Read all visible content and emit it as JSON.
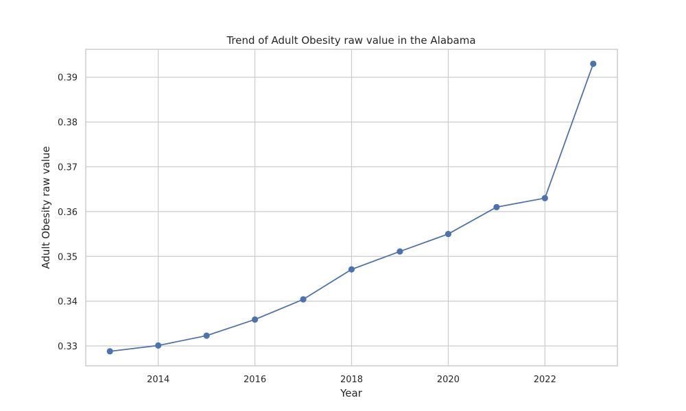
{
  "chart_data": {
    "type": "line",
    "title": "Trend of Adult Obesity raw value in the Alabama",
    "xlabel": "Year",
    "ylabel": "Adult Obesity raw value",
    "x": [
      2013,
      2014,
      2015,
      2016,
      2017,
      2018,
      2019,
      2020,
      2021,
      2022,
      2023
    ],
    "series": [
      {
        "values": [
          0.3288,
          0.3301,
          0.3323,
          0.3359,
          0.3404,
          0.3471,
          0.3511,
          0.355,
          0.361,
          0.363,
          0.393
        ],
        "color": "#4c72b0",
        "marker": "circle"
      }
    ],
    "xticks": [
      "2014",
      "2016",
      "2018",
      "2020",
      "2022"
    ],
    "yticks": [
      "0.33",
      "0.34",
      "0.35",
      "0.36",
      "0.37",
      "0.38",
      "0.39"
    ],
    "xlim": [
      2012.5,
      2023.5
    ],
    "ylim": [
      0.32557,
      0.39623
    ],
    "grid": true
  }
}
